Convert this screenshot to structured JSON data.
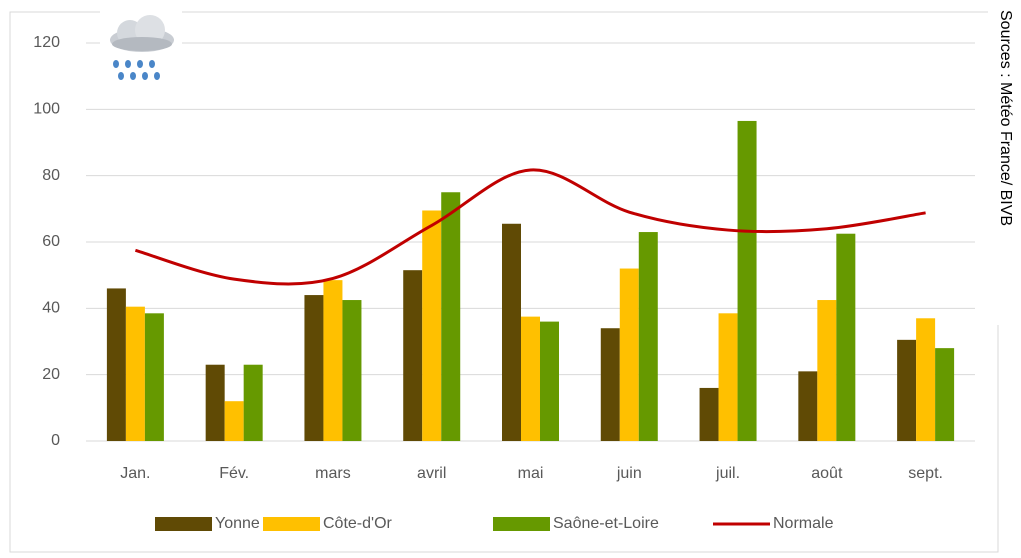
{
  "chart_data": {
    "type": "bar",
    "source": "Sources : Météo France/ BIVB",
    "categories": [
      "Jan.",
      "Fév.",
      "mars",
      "avril",
      "mai",
      "juin",
      "juil.",
      "août",
      "sept."
    ],
    "series": [
      {
        "name": "Yonne",
        "color": "#604a05",
        "values": [
          46,
          23,
          44,
          51.5,
          65.5,
          34,
          16,
          21,
          30.5
        ]
      },
      {
        "name": "Côte-d'Or",
        "color": "#ffc000",
        "values": [
          40.5,
          12,
          48.5,
          69.5,
          37.5,
          52,
          38.5,
          42.5,
          37
        ]
      },
      {
        "name": "Saône-et-Loire",
        "color": "#669900",
        "values": [
          38.5,
          23,
          42.5,
          75,
          36,
          63,
          96.5,
          62.5,
          28
        ]
      },
      {
        "name": "Normale",
        "type": "line",
        "color": "#c00000",
        "values": [
          57.5,
          48.8,
          49,
          65,
          81.7,
          69,
          63.6,
          64,
          68.8
        ]
      }
    ],
    "ylim": [
      0,
      120
    ],
    "yticks": [
      0,
      20,
      40,
      60,
      80,
      100,
      120
    ],
    "grid": true,
    "legend": "bottom"
  }
}
